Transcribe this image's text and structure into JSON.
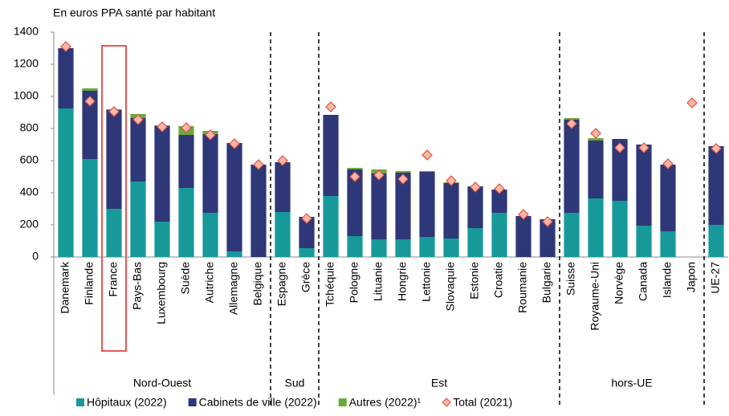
{
  "chart_data": {
    "type": "bar",
    "stacked": true,
    "y_label": "En euros PPA santé par habitant",
    "categories": [
      "Danemark",
      "Finlande",
      "France",
      "Pays-Bas",
      "Luxembourg",
      "Suède",
      "Autriche",
      "Allemagne",
      "Belgique",
      "Espagne",
      "Grèce",
      "Tchéquie",
      "Pologne",
      "Lituanie",
      "Hongrie",
      "Lettonie",
      "Slovaquie",
      "Estonie",
      "Croatie",
      "Roumanie",
      "Bulgarie",
      "Suisse",
      "Royaume-Uni",
      "Norvège",
      "Canada",
      "Islande",
      "Japon",
      "UE-27"
    ],
    "groups": [
      {
        "label": "Nord-Ouest",
        "span": 9
      },
      {
        "label": "Sud",
        "span": 2
      },
      {
        "label": "Est",
        "span": 10
      },
      {
        "label": "hors-UE",
        "span": 6
      }
    ],
    "series": [
      {
        "name": "Hôpitaux (2022)",
        "color": "#17999a",
        "values": [
          925,
          610,
          300,
          470,
          220,
          430,
          275,
          35,
          0,
          280,
          55,
          380,
          130,
          110,
          110,
          125,
          115,
          180,
          275,
          0,
          0,
          275,
          365,
          350,
          195,
          160,
          null,
          200
        ]
      },
      {
        "name": "Cabinets de ville (2022)",
        "color": "#2e3778",
        "values": [
          375,
          425,
          615,
          395,
          595,
          330,
          490,
          675,
          575,
          310,
          195,
          505,
          415,
          410,
          415,
          405,
          345,
          260,
          145,
          255,
          235,
          580,
          360,
          385,
          505,
          415,
          null,
          490
        ]
      },
      {
        "name": "Autres (2022)¹",
        "color": "#6aaa3a",
        "values": [
          0,
          15,
          5,
          25,
          5,
          55,
          20,
          0,
          0,
          0,
          0,
          0,
          10,
          25,
          10,
          5,
          5,
          0,
          0,
          0,
          0,
          10,
          15,
          0,
          0,
          0,
          null,
          0
        ]
      },
      {
        "name": "Total (2021)",
        "type": "marker",
        "color": "#f8b6a8",
        "edge_color": "#e0503f",
        "values": [
          1310,
          970,
          905,
          855,
          810,
          805,
          760,
          705,
          575,
          600,
          240,
          935,
          500,
          510,
          485,
          635,
          475,
          435,
          425,
          265,
          220,
          830,
          770,
          680,
          680,
          580,
          960,
          675
        ]
      }
    ],
    "ylim": [
      0,
      1400
    ],
    "yticks": [
      0,
      200,
      400,
      600,
      800,
      1000,
      1200,
      1400
    ],
    "grid": false
  }
}
